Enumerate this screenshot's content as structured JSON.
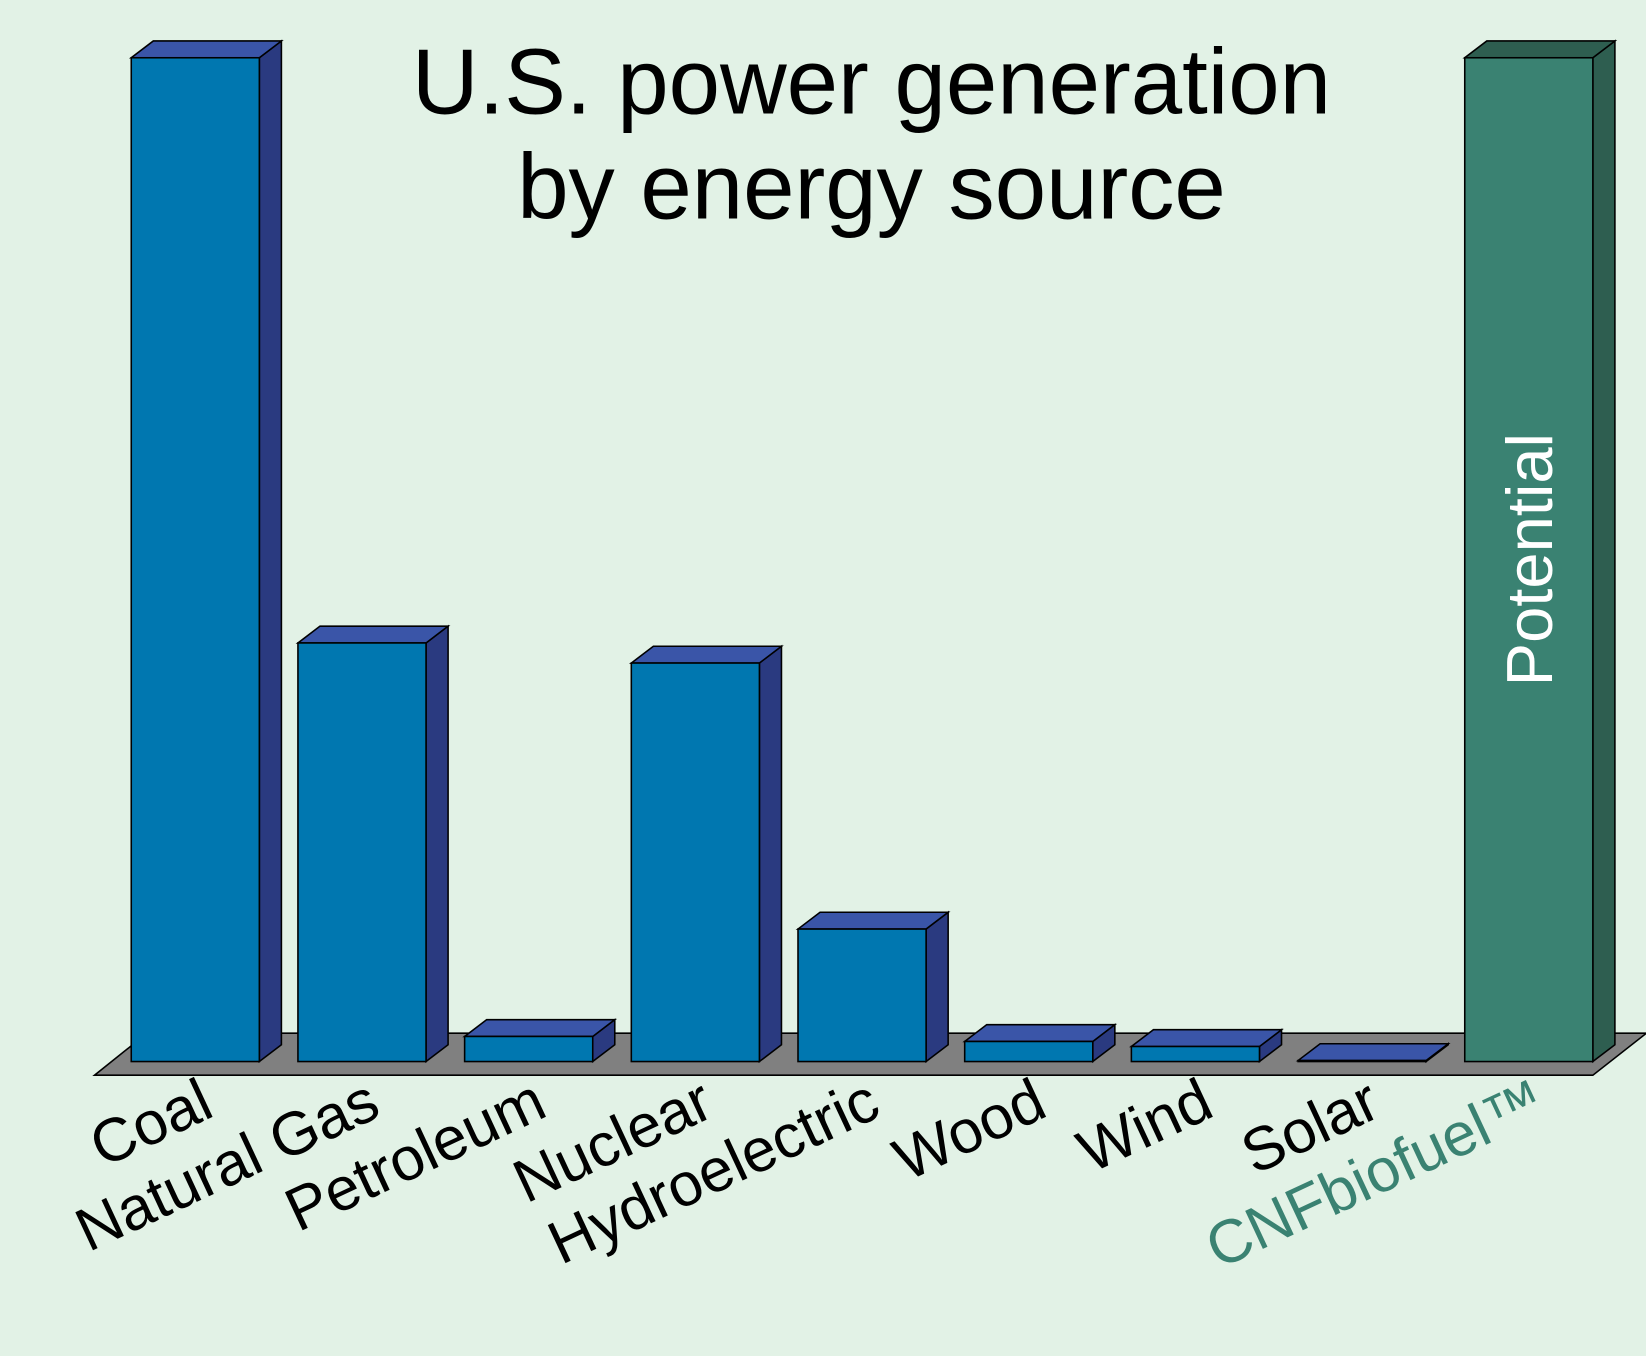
{
  "chart_data": {
    "type": "bar3d",
    "title": [
      "U.S. power generation",
      "by energy source"
    ],
    "annotation": "Potential",
    "categories": [
      "Coal",
      "Natural Gas",
      "Petroleum",
      "Nuclear",
      "Hydroelectric",
      "Wood",
      "Wind",
      "Solar",
      "CNFbiofuel™"
    ],
    "values": [
      100,
      41.7,
      2.5,
      39.7,
      13.2,
      2.0,
      1.5,
      0.1,
      100
    ],
    "colors": [
      "#0077b0",
      "#0077b0",
      "#0077b0",
      "#0077b0",
      "#0077b0",
      "#0077b0",
      "#0077b0",
      "#0077b0",
      "#3a8272"
    ],
    "label_colors": [
      "#000000",
      "#000000",
      "#000000",
      "#000000",
      "#000000",
      "#000000",
      "#000000",
      "#000000",
      "#3a8272"
    ]
  }
}
